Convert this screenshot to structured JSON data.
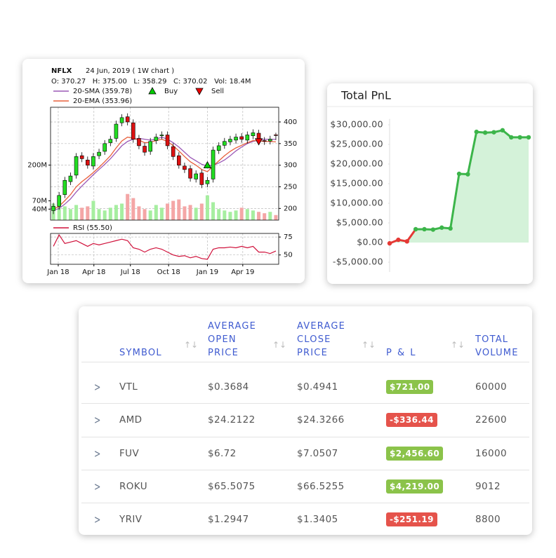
{
  "chart_data": [
    {
      "type": "candlestick",
      "symbol": "NFLX",
      "subtitle": "24 Jun, 2019 ( 1W chart )",
      "ohlc_summary": "O: 370.27   H: 375.00   L: 358.29   C: 370.02   Vol: 18.4M",
      "x": [
        0,
        1,
        2,
        3,
        4,
        5,
        6,
        7,
        8,
        9,
        10,
        11,
        12,
        13,
        14,
        15,
        16,
        17,
        18,
        19,
        20,
        21,
        22,
        23,
        24,
        25,
        26,
        27,
        28,
        29,
        30,
        31,
        32,
        33,
        34,
        35,
        36,
        37,
        38,
        39
      ],
      "xlim": [
        -0.5,
        39.5
      ],
      "xticks": [
        {
          "value": 0.85,
          "label": "Jan 18"
        },
        {
          "value": 7.1,
          "label": "Apr 18"
        },
        {
          "value": 13.5,
          "label": "Jul 18"
        },
        {
          "value": 20.2,
          "label": "Oct 18"
        },
        {
          "value": 27.0,
          "label": "Jan 19"
        },
        {
          "value": 33.2,
          "label": "Apr 19"
        }
      ],
      "open": [
        195,
        205,
        232,
        262,
        277,
        322,
        312,
        298,
        322,
        332,
        352,
        362,
        398,
        412,
        398,
        362,
        344,
        332,
        357,
        368,
        370,
        343,
        322,
        298,
        292,
        268,
        282,
        257,
        268,
        334,
        346,
        354,
        358,
        366,
        358,
        368,
        374,
        357,
        356,
        370.27
      ],
      "high": [
        213,
        238,
        273,
        283,
        328,
        330,
        320,
        328,
        338,
        358,
        368,
        403,
        418,
        420,
        406,
        370,
        352,
        363,
        373,
        378,
        378,
        351,
        330,
        306,
        300,
        288,
        290,
        273,
        343,
        353,
        363,
        368,
        373,
        374,
        378,
        383,
        382,
        365,
        368,
        375
      ],
      "low": [
        187,
        197,
        224,
        254,
        269,
        307,
        292,
        290,
        314,
        324,
        344,
        354,
        390,
        392,
        352,
        337,
        322,
        324,
        349,
        360,
        337,
        312,
        292,
        282,
        262,
        260,
        247,
        249,
        260,
        326,
        338,
        346,
        350,
        352,
        350,
        360,
        347,
        347,
        348,
        358.29
      ],
      "close": [
        205,
        230,
        265,
        275,
        320,
        315,
        300,
        320,
        330,
        350,
        360,
        395,
        410,
        400,
        360,
        345,
        330,
        355,
        365,
        370,
        345,
        320,
        300,
        290,
        270,
        280,
        255,
        265,
        335,
        345,
        355,
        360,
        365,
        360,
        370,
        375,
        355,
        355,
        360,
        370.02
      ],
      "up_color": "#22dd22",
      "down_color": "#dd1111",
      "ylim": [
        173,
        434
      ],
      "yticks": [
        200,
        250,
        300,
        350,
        400
      ],
      "grid": true,
      "volume": {
        "values": [
          60,
          70,
          50,
          40,
          55,
          45,
          50,
          70,
          40,
          35,
          45,
          55,
          60,
          95,
          80,
          50,
          40,
          35,
          55,
          45,
          60,
          70,
          75,
          50,
          55,
          45,
          60,
          90,
          65,
          40,
          35,
          30,
          35,
          45,
          40,
          35,
          30,
          25,
          30,
          18.4
        ],
        "ylim": [
          0,
          410
        ],
        "yticks": [
          {
            "value": 40,
            "label": "40M"
          },
          {
            "value": 70,
            "label": "70M"
          },
          {
            "value": 200,
            "label": "200M"
          }
        ],
        "up_color": "#a6eea0",
        "down_color": "#f4a6a6"
      },
      "series": [
        {
          "name": "20-SMA (359.78)",
          "color": "#9b59b6",
          "values": [
            195,
            200,
            210,
            222,
            238,
            252,
            265,
            278,
            290,
            302,
            315,
            330,
            345,
            355,
            360,
            362,
            360,
            358,
            360,
            365,
            360,
            352,
            342,
            330,
            318,
            310,
            302,
            298,
            300,
            305,
            312,
            322,
            333,
            342,
            350,
            355,
            358,
            360,
            360,
            359.78
          ]
        },
        {
          "name": "20-EMA (353.96)",
          "color": "#e8603c",
          "values": [
            198,
            205,
            218,
            232,
            250,
            262,
            272,
            283,
            295,
            308,
            322,
            340,
            356,
            365,
            362,
            358,
            352,
            353,
            357,
            360,
            355,
            345,
            333,
            320,
            308,
            300,
            290,
            285,
            298,
            310,
            322,
            332,
            340,
            346,
            352,
            357,
            356,
            355,
            355,
            353.96
          ]
        }
      ],
      "signals": [
        {
          "name": "Buy",
          "color": "#00cc00",
          "x": 27,
          "y": 300,
          "direction": "up"
        },
        {
          "name": "Sell",
          "color": "#ee0000",
          "x": 36,
          "y": 355,
          "direction": "down"
        }
      ],
      "rsi": {
        "name": "RSI (55.50)",
        "color": "#d0103a",
        "ylim": [
          37,
          80
        ],
        "yticks": [
          50,
          75
        ],
        "values": [
          62,
          78,
          66,
          68,
          70,
          66,
          62,
          66,
          64,
          66,
          68,
          70,
          72,
          70,
          60,
          58,
          54,
          58,
          60,
          58,
          54,
          50,
          48,
          49,
          46,
          48,
          45,
          44,
          58,
          60,
          60,
          61,
          60,
          62,
          60,
          62,
          54,
          54,
          52,
          55.5
        ]
      }
    },
    {
      "type": "line",
      "title": "Total PnL",
      "x": [
        0,
        1,
        2,
        3,
        4,
        5,
        6,
        7,
        8,
        9,
        10,
        11,
        12,
        13,
        14,
        15,
        16
      ],
      "xlim": [
        0,
        16
      ],
      "series": [
        {
          "name": "Total PnL",
          "color": "#3cb54a",
          "fill": "#d4f2d9",
          "values": [
            -200,
            700,
            300,
            3400,
            3400,
            3300,
            3800,
            3600,
            17500,
            17400,
            28200,
            28000,
            28100,
            28600,
            26800,
            26800,
            26800
          ],
          "point_colors": [
            "#e53935",
            "#e53935",
            "#e53935",
            "#3cb54a",
            "#3cb54a",
            "#3cb54a",
            "#3cb54a",
            "#3cb54a",
            "#3cb54a",
            "#3cb54a",
            "#3cb54a",
            "#3cb54a",
            "#3cb54a",
            "#3cb54a",
            "#3cb54a",
            "#3cb54a",
            "#3cb54a"
          ]
        }
      ],
      "ylim": [
        -7500,
        31500
      ],
      "yticks": [
        {
          "value": -5000,
          "label": "-$5,000.00"
        },
        {
          "value": 0,
          "label": "$0.00"
        },
        {
          "value": 5000,
          "label": "$5,000.00"
        },
        {
          "value": 10000,
          "label": "$10,000.00"
        },
        {
          "value": 15000,
          "label": "$15,000.00"
        },
        {
          "value": 20000,
          "label": "$20,000.00"
        },
        {
          "value": 25000,
          "label": "$25,000.00"
        },
        {
          "value": 30000,
          "label": "$30,000.00"
        }
      ]
    }
  ],
  "table": {
    "headers": [
      "SYMBOL",
      "AVERAGE OPEN PRICE",
      "AVERAGE CLOSE PRICE",
      "P & L",
      "TOTAL VOLUME"
    ],
    "badge_colors": {
      "positive": "#8bc34a",
      "negative": "#e5534b"
    },
    "rows": [
      [
        "VTL",
        "$0.3684",
        "$0.4941",
        "$721.00",
        "60000"
      ],
      [
        "AMD",
        "$24.2122",
        "$24.3266",
        "-$336.44",
        "22600"
      ],
      [
        "FUV",
        "$6.72",
        "$7.0507",
        "$2,456.60",
        "16000"
      ],
      [
        "ROKU",
        "$65.5075",
        "$66.5255",
        "$4,219.00",
        "9012"
      ],
      [
        "YRIV",
        "$1.2947",
        "$1.3405",
        "-$251.19",
        "8800"
      ]
    ]
  }
}
